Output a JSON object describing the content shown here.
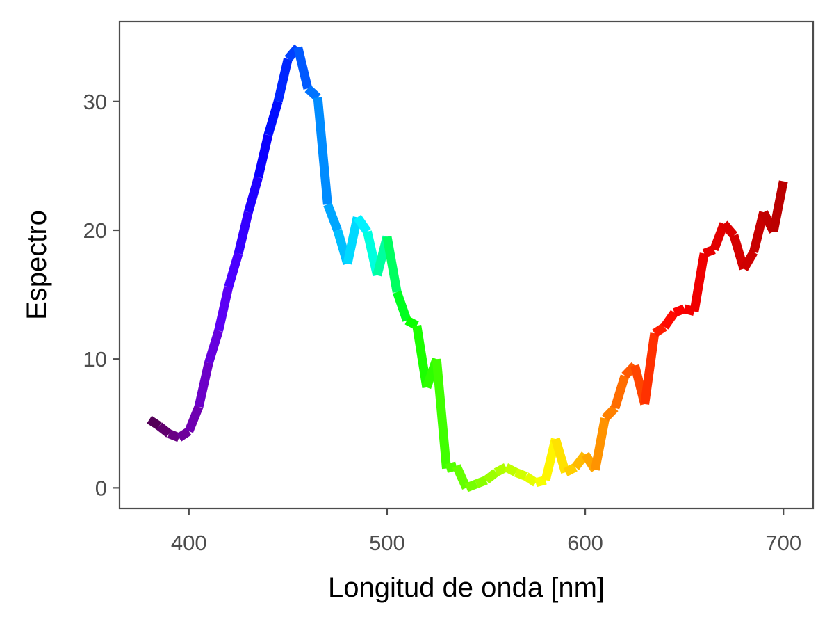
{
  "chart_data": {
    "type": "line",
    "title": "",
    "xlabel": "Longitud de onda [nm]",
    "ylabel": "Espectro",
    "xlim": [
      365,
      715
    ],
    "ylim": [
      -1.6,
      36.2
    ],
    "xticks": [
      400,
      500,
      600,
      700
    ],
    "yticks": [
      0,
      10,
      20,
      30
    ],
    "grid": false,
    "legend": "none",
    "line_colors": "wavelength (violet to red)",
    "series": [
      {
        "x": [
          380,
          385,
          390,
          395,
          400,
          405,
          410,
          415,
          420,
          425,
          430,
          435,
          440,
          445,
          450,
          455,
          460,
          465,
          470,
          475,
          480,
          485,
          490,
          495,
          500,
          505,
          510,
          515,
          520,
          525,
          530,
          535,
          540,
          545,
          550,
          555,
          560,
          565,
          570,
          575,
          580,
          585,
          590,
          595,
          600,
          605,
          610,
          615,
          620,
          625,
          630,
          635,
          640,
          645,
          650,
          655,
          660,
          665,
          670,
          675,
          680,
          685,
          690,
          695,
          700
        ],
        "y": [
          5.3,
          4.8,
          4.2,
          3.9,
          4.4,
          6.3,
          9.7,
          12.2,
          15.6,
          18.2,
          21.4,
          24.1,
          27.4,
          30.0,
          33.3,
          34.2,
          31.0,
          30.3,
          22.0,
          20.0,
          17.4,
          21.0,
          19.9,
          16.5,
          19.5,
          15.2,
          13.0,
          12.6,
          7.8,
          10.0,
          1.5,
          1.7,
          0.0,
          0.3,
          0.6,
          1.2,
          1.6,
          1.2,
          0.9,
          0.4,
          0.6,
          3.8,
          1.2,
          1.6,
          2.6,
          1.4,
          5.4,
          6.2,
          8.7,
          9.5,
          6.5,
          12.0,
          12.5,
          13.6,
          13.9,
          13.7,
          18.2,
          18.5,
          20.5,
          19.6,
          17.0,
          18.3,
          21.4,
          19.9,
          23.8
        ]
      }
    ]
  }
}
